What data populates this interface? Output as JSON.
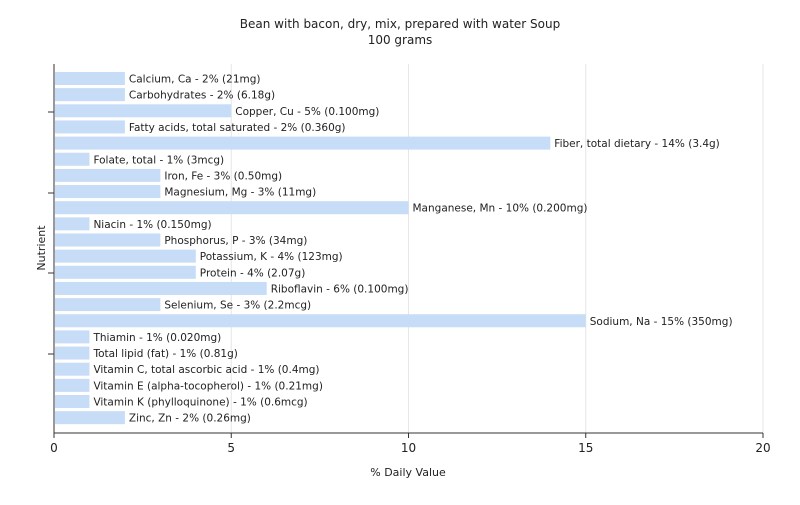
{
  "chart_data": {
    "type": "bar",
    "orientation": "horizontal",
    "title": "Bean with bacon, dry, mix, prepared with water Soup",
    "subtitle": "100 grams",
    "xlabel": "% Daily Value",
    "ylabel": "Nutrient",
    "xlim": [
      0,
      20
    ],
    "xticks": [
      0,
      5,
      10,
      15,
      20
    ],
    "grid": true,
    "bar_color": "#c6dcf7",
    "categories": [
      "Calcium, Ca",
      "Carbohydrates",
      "Copper, Cu",
      "Fatty acids, total saturated",
      "Fiber, total dietary",
      "Folate, total",
      "Iron, Fe",
      "Magnesium, Mg",
      "Manganese, Mn",
      "Niacin",
      "Phosphorus, P",
      "Potassium, K",
      "Protein",
      "Riboflavin",
      "Selenium, Se",
      "Sodium, Na",
      "Thiamin",
      "Total lipid (fat)",
      "Vitamin C, total ascorbic acid",
      "Vitamin E (alpha-tocopherol)",
      "Vitamin K (phylloquinone)",
      "Zinc, Zn"
    ],
    "values": [
      2,
      2,
      5,
      2,
      14,
      1,
      3,
      3,
      10,
      1,
      3,
      4,
      4,
      6,
      3,
      15,
      1,
      1,
      1,
      1,
      1,
      2
    ],
    "labels": [
      "Calcium, Ca - 2% (21mg)",
      "Carbohydrates - 2% (6.18g)",
      "Copper, Cu - 5% (0.100mg)",
      "Fatty acids, total saturated - 2% (0.360g)",
      "Fiber, total dietary - 14% (3.4g)",
      "Folate, total - 1% (3mcg)",
      "Iron, Fe - 3% (0.50mg)",
      "Magnesium, Mg - 3% (11mg)",
      "Manganese, Mn - 10% (0.200mg)",
      "Niacin - 1% (0.150mg)",
      "Phosphorus, P - 3% (34mg)",
      "Potassium, K - 4% (123mg)",
      "Protein - 4% (2.07g)",
      "Riboflavin - 6% (0.100mg)",
      "Selenium, Se - 3% (2.2mcg)",
      "Sodium, Na - 15% (350mg)",
      "Thiamin - 1% (0.020mg)",
      "Total lipid (fat) - 1% (0.81g)",
      "Vitamin C, total ascorbic acid - 1% (0.4mg)",
      "Vitamin E (alpha-tocopherol) - 1% (0.21mg)",
      "Vitamin K (phylloquinone) - 1% (0.6mcg)",
      "Zinc, Zn - 2% (0.26mg)"
    ]
  }
}
